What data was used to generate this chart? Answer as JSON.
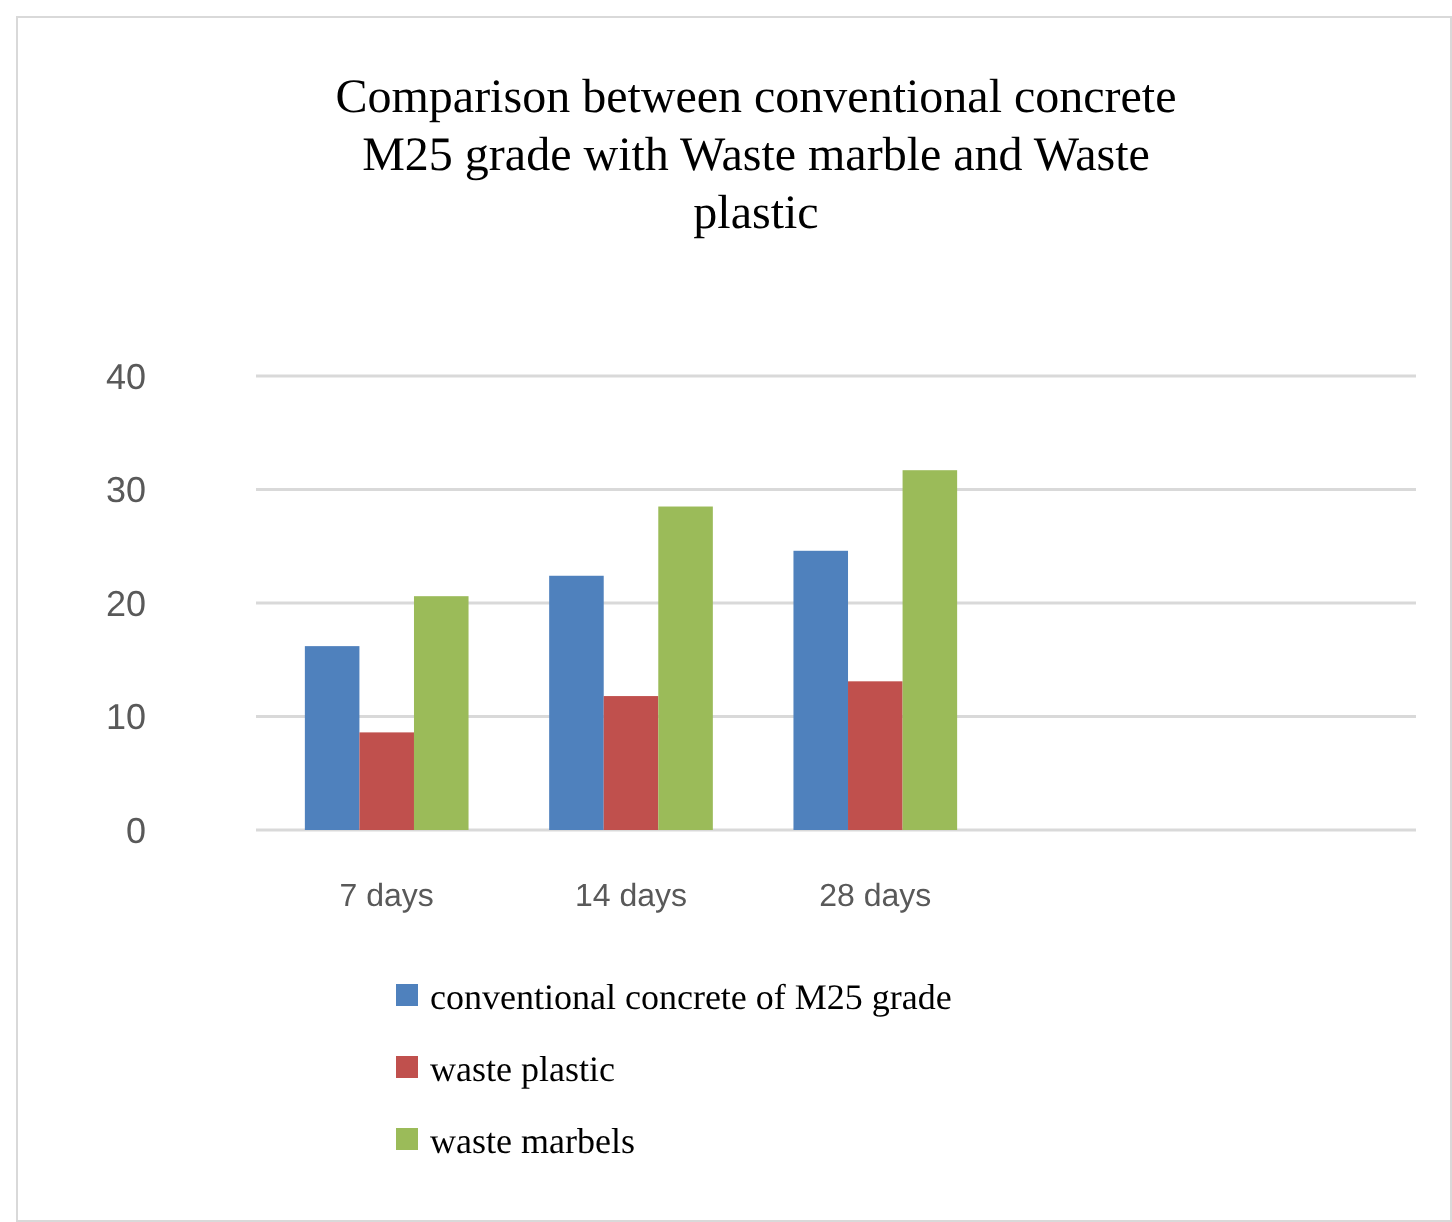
{
  "chart_data": {
    "type": "bar",
    "title": "Comparison between conventional concrete M25 grade with Waste marble and  Waste plastic",
    "categories": [
      "7  days",
      "14 days",
      "28 days"
    ],
    "series": [
      {
        "name": "conventional concrete of M25 grade",
        "color": "#4f81bd",
        "values": [
          16.2,
          22.4,
          24.6
        ]
      },
      {
        "name": "waste plastic",
        "color": "#c0504d",
        "values": [
          8.6,
          11.8,
          13.1
        ]
      },
      {
        "name": "waste marbels",
        "color": "#9bbb59",
        "values": [
          20.6,
          28.5,
          31.7
        ]
      }
    ],
    "ylim": [
      0,
      40
    ],
    "yticks": [
      0,
      10,
      20,
      30,
      40
    ],
    "grid": "y",
    "legend": "bottom"
  }
}
